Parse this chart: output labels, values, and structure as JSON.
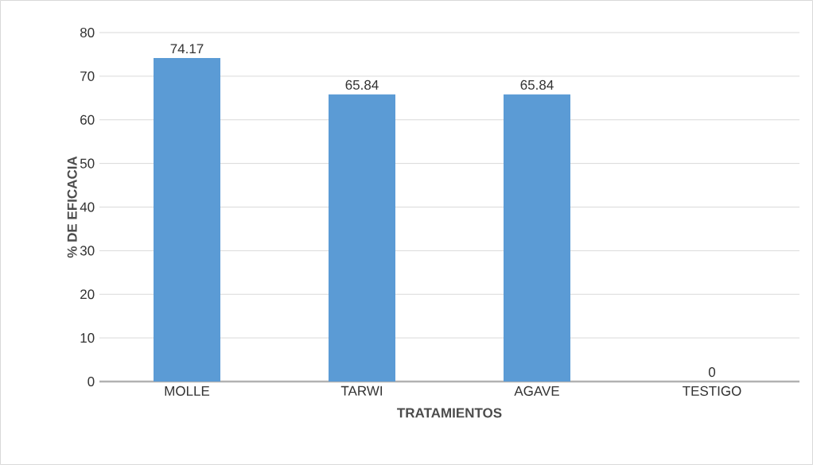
{
  "chart_data": {
    "type": "bar",
    "xlabel": "TRATAMIENTOS",
    "ylabel": "% DE EFICACIA",
    "categories": [
      "MOLLE",
      "TARWI",
      "AGAVE",
      "TESTIGO"
    ],
    "values": [
      74.17,
      65.84,
      65.84,
      0
    ],
    "color": "#5b9bd5",
    "ylim": [
      0,
      80
    ],
    "yticks": [
      0,
      10,
      20,
      30,
      40,
      50,
      60,
      70,
      80
    ],
    "grid": "y",
    "data_labels": true
  }
}
